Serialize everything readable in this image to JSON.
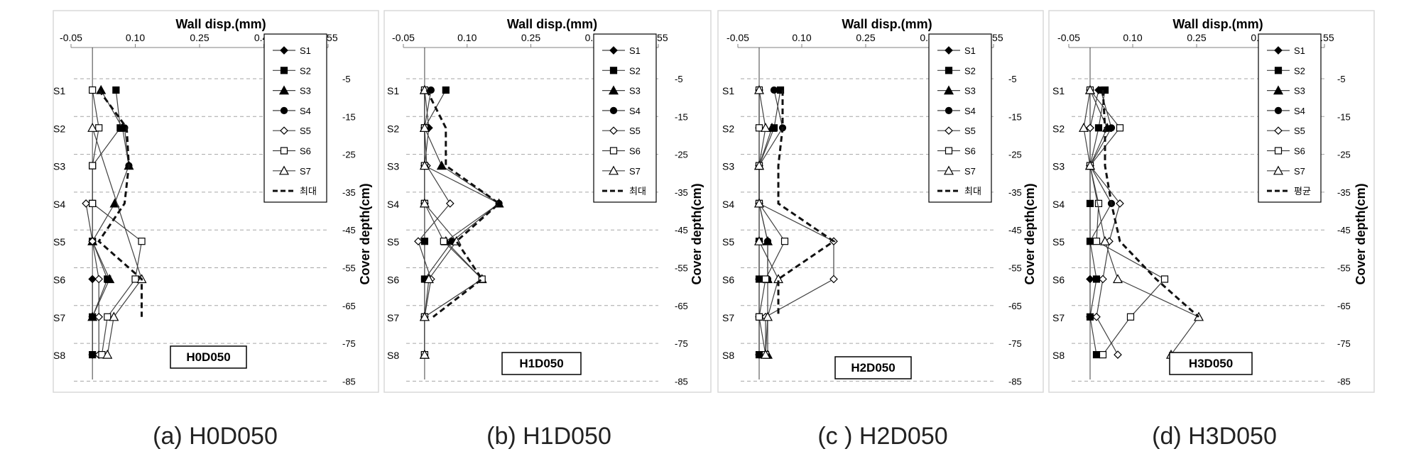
{
  "figure": {
    "captions": [
      "(a) H0D050",
      "(b) H1D050",
      "(c ) H2D050",
      "(d) H3D050"
    ]
  },
  "shared": {
    "x_title": "Wall disp.(mm)",
    "y_title": "Cover depth(cm)",
    "x_ticks": [
      -0.05,
      0.1,
      0.25,
      0.4,
      0.55
    ],
    "x_tick_labels": [
      "-0.05",
      "0.10",
      "0.25",
      "0.40",
      "0.55"
    ],
    "y_ticks": [
      -5,
      -15,
      -25,
      -35,
      -45,
      -55,
      -65,
      -75,
      -85
    ],
    "y_tick_labels": [
      "-5",
      "-15",
      "-25",
      "-35",
      "-45",
      "-55",
      "-65",
      "-75",
      "-85"
    ],
    "sensor_labels": [
      "S1",
      "S2",
      "S3",
      "S4",
      "S5",
      "S6",
      "S7",
      "S8"
    ],
    "xlim": [
      -0.05,
      0.55
    ],
    "ylim": [
      -85,
      -5
    ],
    "colors": {
      "series": "#000000",
      "thin_line": "#404040",
      "dashed": "#111111",
      "grid": "#a6a6a6",
      "frame": "#d9d9d9"
    }
  },
  "chart_data": [
    {
      "type": "line",
      "label": "H0D050",
      "legend": [
        "S1",
        "S2",
        "S3",
        "S4",
        "S5",
        "S6",
        "S7",
        "최대"
      ],
      "series": [
        {
          "name": "S1",
          "marker": "diamond-filled",
          "points": [
            [
              0.0,
              -58
            ],
            [
              0.0,
              -68
            ],
            [
              0.0,
              -78
            ]
          ]
        },
        {
          "name": "S2",
          "marker": "square-filled",
          "points": [
            [
              0.055,
              -8
            ],
            [
              0.065,
              -18
            ],
            [
              0.0,
              -28
            ],
            [
              0.0,
              -38
            ],
            [
              0.0,
              -48
            ],
            [
              0.035,
              -58
            ],
            [
              0.0,
              -68
            ],
            [
              0.0,
              -78
            ]
          ]
        },
        {
          "name": "S3",
          "marker": "triangle-filled",
          "points": [
            [
              0.02,
              -8
            ],
            [
              0.07,
              -18
            ],
            [
              0.085,
              -28
            ],
            [
              0.052,
              -38
            ],
            [
              0.0,
              -48
            ],
            [
              0.04,
              -58
            ],
            [
              0.0,
              -68
            ]
          ]
        },
        {
          "name": "S4",
          "marker": "circle-filled",
          "points": [
            [
              0.075,
              -18
            ],
            [
              0.085,
              -28
            ]
          ]
        },
        {
          "name": "S5",
          "marker": "diamond-open",
          "points": [
            [
              -0.015,
              -38
            ],
            [
              0.0,
              -48
            ],
            [
              0.015,
              -58
            ],
            [
              0.015,
              -68
            ],
            [
              0.015,
              -78
            ]
          ]
        },
        {
          "name": "S6",
          "marker": "square-open",
          "points": [
            [
              0.0,
              -8
            ],
            [
              0.015,
              -18
            ],
            [
              0.0,
              -28
            ],
            [
              0.0,
              -38
            ],
            [
              0.115,
              -48
            ],
            [
              0.1,
              -58
            ],
            [
              0.035,
              -68
            ],
            [
              0.022,
              -78
            ]
          ]
        },
        {
          "name": "S7",
          "marker": "triangle-open",
          "points": [
            [
              0.0,
              -18
            ],
            [
              0.115,
              -58
            ],
            [
              0.05,
              -68
            ],
            [
              0.035,
              -78
            ]
          ]
        },
        {
          "name": "최대",
          "marker": "none",
          "dashed": true,
          "points": [
            [
              0.015,
              -8
            ],
            [
              0.08,
              -18
            ],
            [
              0.085,
              -28
            ],
            [
              0.075,
              -38
            ],
            [
              0.015,
              -48
            ],
            [
              0.115,
              -58
            ],
            [
              0.115,
              -68
            ]
          ]
        }
      ]
    },
    {
      "type": "line",
      "label": "H1D050",
      "legend": [
        "S1",
        "S2",
        "S3",
        "S4",
        "S5",
        "S6",
        "S7",
        "최대"
      ],
      "series": [
        {
          "name": "S1",
          "marker": "diamond-filled",
          "points": [
            [
              0.0,
              -8
            ],
            [
              0.01,
              -18
            ],
            [
              0.0,
              -28
            ],
            [
              0.0,
              -38
            ]
          ]
        },
        {
          "name": "S2",
          "marker": "square-filled",
          "points": [
            [
              0.05,
              -8
            ],
            [
              0.0,
              -18
            ],
            [
              0.0,
              -28
            ],
            [
              0.0,
              -38
            ],
            [
              0.0,
              -48
            ],
            [
              0.0,
              -58
            ],
            [
              0.0,
              -68
            ],
            [
              0.0,
              -78
            ]
          ]
        },
        {
          "name": "S3",
          "marker": "triangle-filled",
          "points": [
            [
              0.0,
              -8
            ],
            [
              0.0,
              -18
            ],
            [
              0.04,
              -28
            ],
            [
              0.175,
              -38
            ],
            [
              0.05,
              -48
            ],
            [
              0.135,
              -58
            ],
            [
              0.0,
              -68
            ],
            [
              0.0,
              -78
            ]
          ]
        },
        {
          "name": "S4",
          "marker": "circle-filled",
          "points": [
            [
              0.015,
              -8
            ],
            [
              0.0,
              -18
            ],
            [
              0.0,
              -28
            ],
            [
              0.175,
              -38
            ],
            [
              0.065,
              -48
            ],
            [
              0.0,
              -58
            ]
          ]
        },
        {
          "name": "S5",
          "marker": "diamond-open",
          "points": [
            [
              0.0,
              -8
            ],
            [
              0.0,
              -18
            ],
            [
              0.005,
              -28
            ],
            [
              0.06,
              -38
            ],
            [
              -0.015,
              -48
            ],
            [
              0.015,
              -58
            ],
            [
              0.0,
              -68
            ]
          ]
        },
        {
          "name": "S6",
          "marker": "square-open",
          "points": [
            [
              0.0,
              -8
            ],
            [
              0.0,
              -18
            ],
            [
              0.0,
              -28
            ],
            [
              0.0,
              -38
            ],
            [
              0.045,
              -48
            ],
            [
              0.135,
              -58
            ],
            [
              0.0,
              -68
            ],
            [
              0.0,
              -78
            ]
          ]
        },
        {
          "name": "S7",
          "marker": "triangle-open",
          "points": [
            [
              0.0,
              -8
            ],
            [
              0.0,
              -18
            ],
            [
              0.0,
              -28
            ],
            [
              0.0,
              -38
            ],
            [
              0.075,
              -48
            ],
            [
              0.01,
              -58
            ],
            [
              0.0,
              -68
            ],
            [
              0.0,
              -78
            ]
          ]
        },
        {
          "name": "최대",
          "marker": "none",
          "dashed": true,
          "points": [
            [
              0.005,
              -8
            ],
            [
              0.05,
              -18
            ],
            [
              0.05,
              -28
            ],
            [
              0.175,
              -38
            ],
            [
              0.075,
              -48
            ],
            [
              0.135,
              -58
            ],
            [
              0.02,
              -68
            ]
          ]
        }
      ]
    },
    {
      "type": "line",
      "label": "H2D050",
      "legend": [
        "S1",
        "S2",
        "S3",
        "S4",
        "S5",
        "S6",
        "S7",
        "최대"
      ],
      "series": [
        {
          "name": "S1",
          "marker": "diamond-filled",
          "points": [
            [
              0.0,
              -48
            ],
            [
              0.0,
              -58
            ],
            [
              0.0,
              -68
            ],
            [
              0.0,
              -78
            ]
          ]
        },
        {
          "name": "S2",
          "marker": "square-filled",
          "points": [
            [
              0.05,
              -8
            ],
            [
              0.035,
              -18
            ],
            [
              0.0,
              -28
            ],
            [
              0.0,
              -38
            ],
            [
              0.0,
              -48
            ],
            [
              0.0,
              -58
            ],
            [
              0.0,
              -68
            ],
            [
              0.0,
              -78
            ]
          ]
        },
        {
          "name": "S3",
          "marker": "triangle-filled",
          "points": [
            [
              0.03,
              -18
            ],
            [
              0.0,
              -28
            ],
            [
              0.0,
              -38
            ],
            [
              0.02,
              -48
            ],
            [
              0.02,
              -58
            ],
            [
              0.02,
              -78
            ]
          ]
        },
        {
          "name": "S4",
          "marker": "circle-filled",
          "points": [
            [
              0.035,
              -8
            ],
            [
              0.055,
              -18
            ],
            [
              0.0,
              -28
            ],
            [
              0.0,
              -38
            ],
            [
              0.02,
              -48
            ],
            [
              0.02,
              -58
            ]
          ]
        },
        {
          "name": "S5",
          "marker": "diamond-open",
          "points": [
            [
              0.0,
              -8
            ],
            [
              0.0,
              -18
            ],
            [
              0.0,
              -28
            ],
            [
              0.0,
              -38
            ],
            [
              0.175,
              -48
            ],
            [
              0.175,
              -58
            ],
            [
              0.015,
              -68
            ],
            [
              0.015,
              -78
            ]
          ]
        },
        {
          "name": "S6",
          "marker": "square-open",
          "points": [
            [
              0.0,
              -8
            ],
            [
              0.0,
              -18
            ],
            [
              0.0,
              -28
            ],
            [
              0.0,
              -38
            ],
            [
              0.06,
              -48
            ],
            [
              0.015,
              -58
            ],
            [
              0.0,
              -68
            ],
            [
              0.015,
              -78
            ]
          ]
        },
        {
          "name": "S7",
          "marker": "triangle-open",
          "points": [
            [
              0.0,
              -8
            ],
            [
              0.015,
              -18
            ],
            [
              0.0,
              -28
            ],
            [
              0.0,
              -38
            ],
            [
              0.0,
              -48
            ],
            [
              0.045,
              -58
            ],
            [
              0.02,
              -68
            ],
            [
              0.015,
              -78
            ]
          ]
        },
        {
          "name": "최대",
          "marker": "none",
          "dashed": true,
          "points": [
            [
              0.055,
              -8
            ],
            [
              0.055,
              -18
            ],
            [
              0.045,
              -28
            ],
            [
              0.045,
              -38
            ],
            [
              0.175,
              -48
            ],
            [
              0.045,
              -58
            ],
            [
              0.045,
              -68
            ]
          ]
        }
      ]
    },
    {
      "type": "line",
      "label": "H3D050",
      "legend": [
        "S1",
        "S2",
        "S3",
        "S4",
        "S5",
        "S6",
        "S7",
        "평균"
      ],
      "series": [
        {
          "name": "S1",
          "marker": "diamond-filled",
          "points": [
            [
              0.02,
              -8
            ],
            [
              0.0,
              -18
            ],
            [
              0.0,
              -28
            ],
            [
              0.0,
              -58
            ],
            [
              0.0,
              -68
            ]
          ]
        },
        {
          "name": "S2",
          "marker": "square-filled",
          "points": [
            [
              0.035,
              -8
            ],
            [
              0.02,
              -18
            ],
            [
              0.0,
              -28
            ],
            [
              0.0,
              -38
            ],
            [
              0.0,
              -48
            ],
            [
              0.015,
              -58
            ],
            [
              0.0,
              -68
            ],
            [
              0.015,
              -78
            ]
          ]
        },
        {
          "name": "S3",
          "marker": "triangle-filled",
          "points": [
            [
              0.0,
              -8
            ],
            [
              0.04,
              -18
            ],
            [
              0.0,
              -28
            ]
          ]
        },
        {
          "name": "S4",
          "marker": "circle-filled",
          "points": [
            [
              0.025,
              -8
            ],
            [
              0.05,
              -18
            ],
            [
              0.0,
              -28
            ],
            [
              0.05,
              -38
            ],
            [
              0.0,
              -48
            ]
          ]
        },
        {
          "name": "S5",
          "marker": "diamond-open",
          "points": [
            [
              0.0,
              -8
            ],
            [
              0.0,
              -18
            ],
            [
              0.0,
              -28
            ],
            [
              0.07,
              -38
            ],
            [
              0.045,
              -48
            ],
            [
              0.03,
              -58
            ],
            [
              0.015,
              -68
            ],
            [
              0.065,
              -78
            ]
          ]
        },
        {
          "name": "S6",
          "marker": "square-open",
          "points": [
            [
              0.0,
              -8
            ],
            [
              0.07,
              -18
            ],
            [
              0.0,
              -28
            ],
            [
              0.02,
              -38
            ],
            [
              0.015,
              -48
            ],
            [
              0.175,
              -58
            ],
            [
              0.095,
              -68
            ],
            [
              0.03,
              -78
            ]
          ]
        },
        {
          "name": "S7",
          "marker": "triangle-open",
          "points": [
            [
              0.0,
              -8
            ],
            [
              -0.015,
              -18
            ],
            [
              0.0,
              -28
            ],
            [
              0.035,
              -48
            ],
            [
              0.065,
              -58
            ],
            [
              0.255,
              -68
            ],
            [
              0.19,
              -78
            ]
          ]
        },
        {
          "name": "평균",
          "marker": "none",
          "dashed": true,
          "points": [
            [
              0.03,
              -8
            ],
            [
              0.035,
              -18
            ],
            [
              0.035,
              -28
            ],
            [
              0.05,
              -38
            ],
            [
              0.07,
              -48
            ],
            [
              0.155,
              -58
            ],
            [
              0.255,
              -68
            ]
          ]
        }
      ]
    }
  ]
}
